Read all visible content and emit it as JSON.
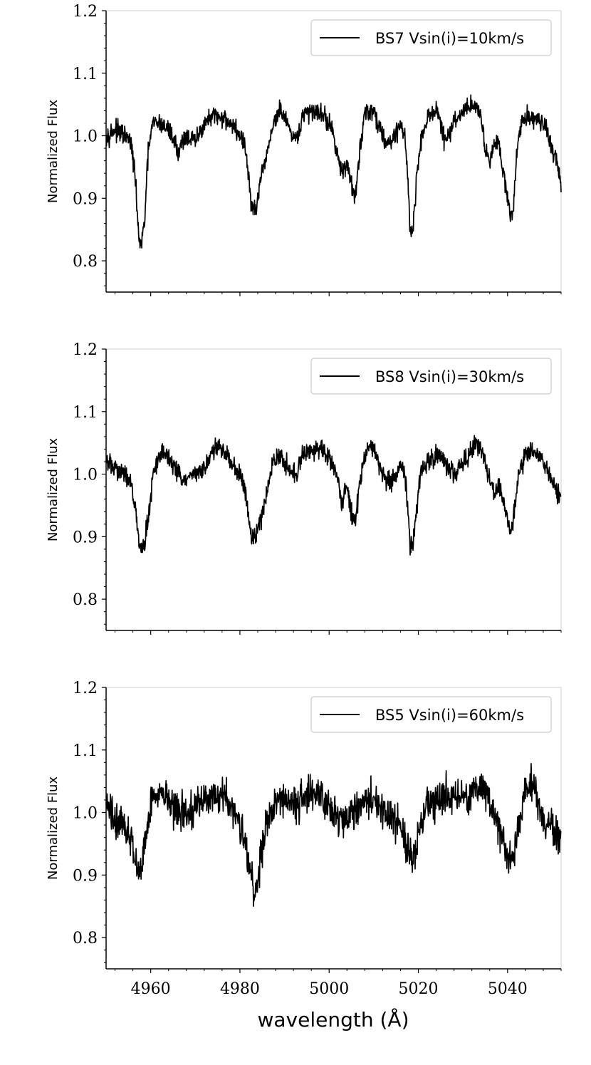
{
  "figure": {
    "xlabel": "wavelength ($\\AA$)",
    "xlabel_text": "wavelength (Å)"
  },
  "chart_data": [
    {
      "type": "line",
      "ylabel": "Normalized Flux",
      "xlim": [
        4950,
        5052
      ],
      "ylim": [
        0.75,
        1.2
      ],
      "yticks": [
        0.8,
        0.9,
        1.0,
        1.1,
        1.2
      ],
      "ytick_labels": [
        "0.8",
        "0.9",
        "1.0",
        "1.1",
        "1.2"
      ],
      "xticks": [
        4960,
        4980,
        5000,
        5020,
        5040
      ],
      "xtick_labels": [],
      "legend": "top-right",
      "series": [
        {
          "name": "BS7 Vsin(i)=10km/s",
          "color": "#000000",
          "noise": 0.012,
          "x": [
            4950,
            4952,
            4954,
            4955.5,
            4956.3,
            4957,
            4957.3,
            4957.8,
            4958.6,
            4959.5,
            4960.5,
            4962,
            4964,
            4965.5,
            4966,
            4967,
            4968,
            4970,
            4972,
            4974,
            4976,
            4978,
            4980,
            4981,
            4982,
            4982.6,
            4983,
            4983.5,
            4984.5,
            4986,
            4987.5,
            4989,
            4990,
            4991,
            4992,
            4993,
            4994,
            4996,
            4998,
            5000,
            5001,
            5002,
            5002.6,
            5003,
            5004,
            5005.3,
            5005.9,
            5006.8,
            5008,
            5010,
            5011,
            5012,
            5013,
            5014,
            5016,
            5017,
            5017.8,
            5018.2,
            5018.7,
            5019.5,
            5020.5,
            5022,
            5024,
            5025,
            5026,
            5028,
            5030,
            5032,
            5033,
            5034,
            5035,
            5036,
            5037,
            5038,
            5039,
            5040,
            5040.6,
            5041.3,
            5042,
            5043,
            5044,
            5046,
            5048,
            5050,
            5051,
            5052
          ],
          "y": [
            1.0,
            1.01,
            1.0,
            0.99,
            0.95,
            0.88,
            0.84,
            0.82,
            0.86,
            0.98,
            1.02,
            1.02,
            1.01,
            0.99,
            0.97,
            0.99,
            1.0,
            0.99,
            1.02,
            1.03,
            1.03,
            1.02,
            1.0,
            0.99,
            0.93,
            0.89,
            0.88,
            0.88,
            0.92,
            0.97,
            1.02,
            1.04,
            1.03,
            1.01,
            0.99,
            1.0,
            1.03,
            1.04,
            1.04,
            1.02,
            1.0,
            0.97,
            0.94,
            0.94,
            0.96,
            0.91,
            0.9,
            0.97,
            1.04,
            1.04,
            1.02,
            1.0,
            0.99,
            0.99,
            1.02,
            1.0,
            0.91,
            0.85,
            0.84,
            0.92,
            0.99,
            1.03,
            1.04,
            1.02,
            0.99,
            1.02,
            1.04,
            1.05,
            1.05,
            1.03,
            0.98,
            0.96,
            0.99,
            0.99,
            0.95,
            0.9,
            0.87,
            0.88,
            0.97,
            1.02,
            1.03,
            1.03,
            1.02,
            0.98,
            0.96,
            0.92
          ]
        }
      ]
    },
    {
      "type": "line",
      "ylabel": "Normalized Flux",
      "xlim": [
        4950,
        5052
      ],
      "ylim": [
        0.75,
        1.2
      ],
      "yticks": [
        0.8,
        0.9,
        1.0,
        1.1,
        1.2
      ],
      "ytick_labels": [
        "0.8",
        "0.9",
        "1.0",
        "1.1",
        "1.2"
      ],
      "xticks": [
        4960,
        4980,
        5000,
        5020,
        5040
      ],
      "xtick_labels": [],
      "legend": "top-right",
      "series": [
        {
          "name": "BS8 Vsin(i)=30km/s",
          "color": "#000000",
          "noise": 0.012,
          "x": [
            4950,
            4952,
            4954,
            4955.5,
            4956.3,
            4957,
            4957.5,
            4958.3,
            4959.5,
            4960.5,
            4962,
            4964,
            4965.5,
            4967,
            4968,
            4970,
            4972,
            4974,
            4976,
            4978,
            4980,
            4981,
            4982,
            4982.6,
            4983.3,
            4984.5,
            4986,
            4987.5,
            4989,
            4990,
            4991,
            4992,
            4993,
            4994,
            4996,
            4998,
            5000,
            5001,
            5002,
            5002.6,
            5003,
            5004,
            5005.3,
            5005.9,
            5006.8,
            5008,
            5009,
            5010,
            5011,
            5012,
            5013,
            5014,
            5016,
            5017,
            5017.8,
            5018.2,
            5018.8,
            5019.5,
            5020.5,
            5022,
            5024,
            5025,
            5026,
            5028,
            5030,
            5032,
            5033,
            5034,
            5035,
            5036,
            5037,
            5038,
            5039,
            5040,
            5040.7,
            5041.5,
            5042.5,
            5043.5,
            5044,
            5046,
            5048,
            5050,
            5051,
            5052
          ],
          "y": [
            1.02,
            1.01,
            1.0,
            0.99,
            0.96,
            0.92,
            0.88,
            0.88,
            0.93,
            1.0,
            1.03,
            1.03,
            1.01,
            0.99,
            0.99,
            1.0,
            1.01,
            1.04,
            1.04,
            1.02,
            1.0,
            0.98,
            0.93,
            0.9,
            0.9,
            0.92,
            0.97,
            1.02,
            1.03,
            1.02,
            1.01,
            1.0,
            1.0,
            1.03,
            1.04,
            1.04,
            1.03,
            1.01,
            0.99,
            0.96,
            0.96,
            0.98,
            0.93,
            0.93,
            0.98,
            1.03,
            1.05,
            1.04,
            1.02,
            1.0,
            0.99,
            0.99,
            1.01,
            1.0,
            0.93,
            0.88,
            0.89,
            0.94,
            1.0,
            1.02,
            1.03,
            1.03,
            1.02,
            1.0,
            1.02,
            1.04,
            1.05,
            1.04,
            1.02,
            0.99,
            0.97,
            0.98,
            0.96,
            0.93,
            0.9,
            0.94,
            1.0,
            1.02,
            1.03,
            1.04,
            1.02,
            0.99,
            0.97,
            0.96
          ]
        }
      ]
    },
    {
      "type": "line",
      "ylabel": "Normalized Flux",
      "xlim": [
        4950,
        5052
      ],
      "ylim": [
        0.75,
        1.2
      ],
      "yticks": [
        0.8,
        0.9,
        1.0,
        1.1,
        1.2
      ],
      "ytick_labels": [
        "0.8",
        "0.9",
        "1.0",
        "1.1",
        "1.2"
      ],
      "xticks": [
        4960,
        4980,
        5000,
        5020,
        5040
      ],
      "xtick_labels": [
        "4960",
        "4980",
        "5000",
        "5020",
        "5040"
      ],
      "xlabel": "wavelength ($\\AA$)",
      "legend": "top-right",
      "series": [
        {
          "name": "BS5 Vsin(i)=60km/s",
          "color": "#000000",
          "noise": 0.022,
          "x": [
            4950,
            4952,
            4954,
            4955.5,
            4956.5,
            4957.3,
            4958,
            4959,
            4960,
            4961,
            4962,
            4964,
            4966,
            4968,
            4970,
            4972,
            4974,
            4976,
            4978,
            4980,
            4981,
            4982,
            4983,
            4983.5,
            4984.3,
            4985,
            4986,
            4988,
            4990,
            4992,
            4994,
            4996,
            4998,
            5000,
            5002,
            5004,
            5006,
            5008,
            5010,
            5012,
            5014,
            5016,
            5017,
            5018,
            5018.5,
            5019.3,
            5020.5,
            5022,
            5024,
            5026,
            5028,
            5030,
            5032,
            5034,
            5036,
            5038,
            5039,
            5040,
            5040.8,
            5041.5,
            5042.5,
            5044,
            5045,
            5046,
            5048,
            5050,
            5052
          ],
          "y": [
            1.01,
            0.99,
            0.98,
            0.96,
            0.93,
            0.9,
            0.92,
            0.97,
            1.02,
            1.03,
            1.03,
            1.02,
            1.0,
            1.0,
            1.01,
            1.02,
            1.03,
            1.03,
            1.01,
            0.98,
            0.95,
            0.92,
            0.88,
            0.88,
            0.91,
            0.95,
            0.99,
            1.02,
            1.02,
            1.01,
            1.02,
            1.03,
            1.03,
            1.01,
            0.99,
            0.99,
            1.0,
            1.02,
            1.02,
            1.0,
            0.99,
            0.98,
            0.96,
            0.94,
            0.92,
            0.94,
            0.98,
            1.01,
            1.02,
            1.03,
            1.03,
            1.02,
            1.03,
            1.04,
            1.02,
            0.98,
            0.96,
            0.93,
            0.92,
            0.94,
            0.98,
            1.03,
            1.05,
            1.04,
            0.99,
            0.97,
            0.96
          ]
        }
      ]
    }
  ]
}
